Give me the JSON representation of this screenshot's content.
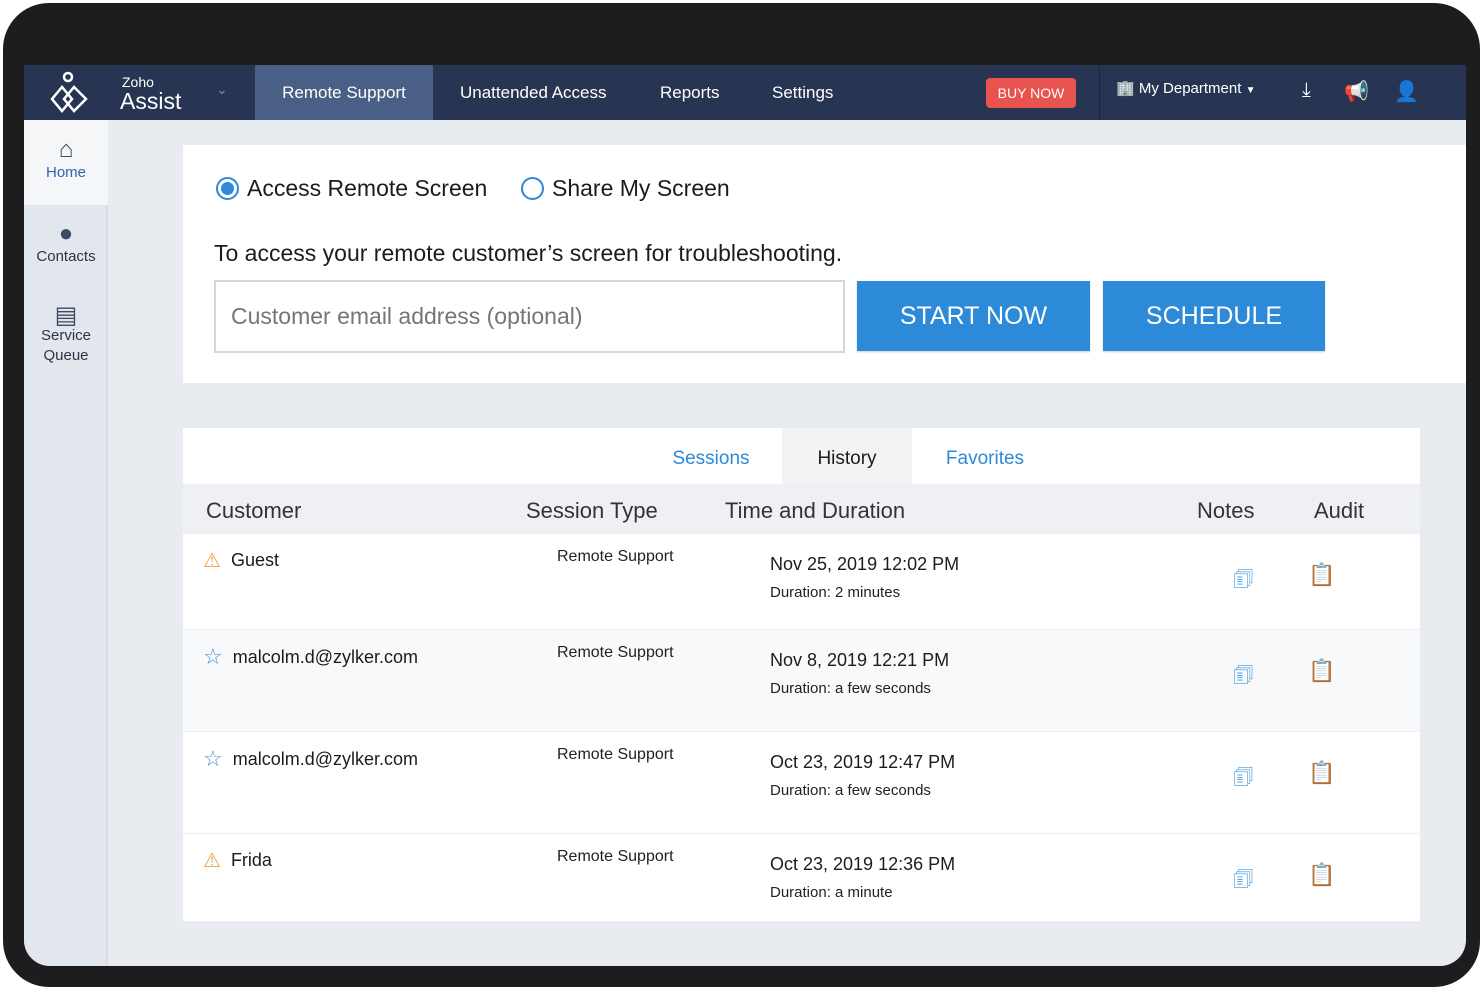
{
  "nav": {
    "logo_small": "Zoho",
    "logo_big": "Assist",
    "items": [
      "Remote Support",
      "Unattended Access",
      "Reports",
      "Settings"
    ],
    "active": "Remote Support",
    "buy_now": "BUY NOW",
    "department": "My Department"
  },
  "sidebar": {
    "items": [
      "Home",
      "Contacts",
      "Service\nQueue"
    ],
    "active": "Home"
  },
  "access": {
    "options": [
      "Access Remote Screen",
      "Share My Screen"
    ],
    "selected": "Access Remote Screen",
    "description": "To access your remote customer’s screen for troubleshooting.",
    "email_placeholder": "Customer email address (optional)",
    "email_value": "",
    "start": "START NOW",
    "schedule": "SCHEDULE"
  },
  "history": {
    "tabs": [
      "Sessions",
      "History",
      "Favorites"
    ],
    "active_tab": "History",
    "columns": [
      "Customer",
      "Session Type",
      "Time and Duration",
      "Notes",
      "Audit"
    ],
    "rows": [
      {
        "customer": "Guest",
        "icon": "warning-icon",
        "type": "Remote Support",
        "time": "Nov 25, 2019 12:02 PM",
        "duration": "Duration: 2 minutes"
      },
      {
        "customer": "malcolm.d@zylker.com",
        "icon": "star-icon",
        "type": "Remote Support",
        "time": "Nov 8, 2019 12:21 PM",
        "duration": "Duration: a few seconds"
      },
      {
        "customer": "malcolm.d@zylker.com",
        "icon": "star-icon",
        "type": "Remote Support",
        "time": "Oct 23, 2019 12:47 PM",
        "duration": "Duration: a few seconds"
      },
      {
        "customer": "Frida",
        "icon": "warning-icon",
        "type": "Remote Support",
        "time": "Oct 23, 2019 12:36 PM",
        "duration": "Duration: a minute"
      }
    ]
  },
  "colors": {
    "nav": "#283552",
    "accent": "#2d8ad8",
    "buy": "#e8534f"
  }
}
